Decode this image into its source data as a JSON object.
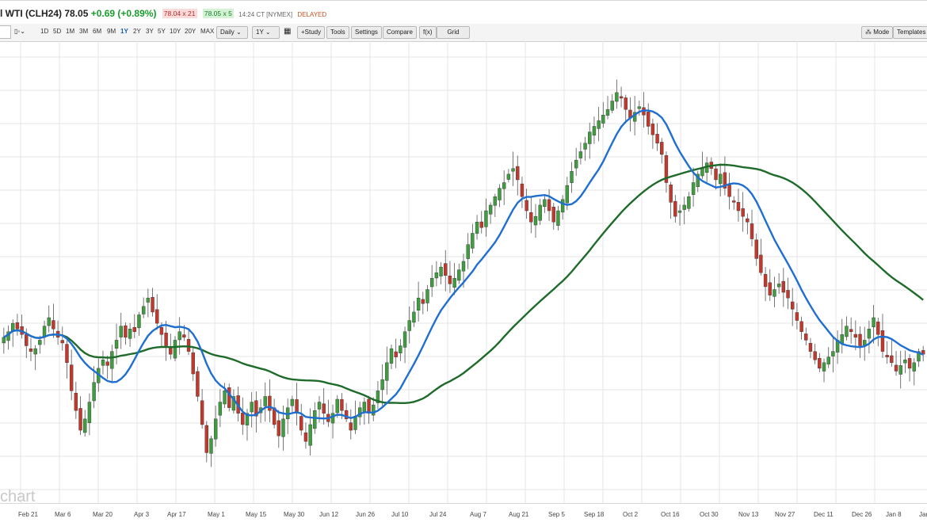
{
  "header": {
    "symbol": "l WTI (CLH24)",
    "price": "78.05",
    "change": "+0.69 (+0.89%)",
    "bid": "78.04 x 21",
    "ask": "78.05 x 5",
    "time": "14:24 CT [NYMEX]",
    "status": "DELAYED"
  },
  "toolbar": {
    "ranges": [
      "1D",
      "5D",
      "1M",
      "3M",
      "6M",
      "9M",
      "1Y",
      "2Y",
      "3Y",
      "5Y",
      "10Y",
      "20Y",
      "MAX"
    ],
    "active_range": "1Y",
    "interval": "Daily",
    "period": "1Y",
    "study": "+Study",
    "tools": "Tools",
    "settings": "Settings",
    "compare": "Compare",
    "fx": "f(x)",
    "grid": "Grid",
    "mode": "Mode",
    "templates": "Templates"
  },
  "xaxis": [
    "Feb 21",
    "Mar 6",
    "Mar 20",
    "Apr 3",
    "Apr 17",
    "May 1",
    "May 15",
    "May 30",
    "Jun 12",
    "Jun 26",
    "Jul 10",
    "Jul 24",
    "Aug 7",
    "Aug 21",
    "Sep 5",
    "Sep 18",
    "Oct 2",
    "Oct 16",
    "Oct 30",
    "Nov 13",
    "Nov 27",
    "Dec 11",
    "Dec 26",
    "Jan 8",
    "Jan"
  ],
  "watermark": "chart",
  "colors": {
    "up": "#3f9d3f",
    "down": "#c2382c",
    "ma_fast": "#1f6fd1",
    "ma_slow": "#1e6b2a",
    "grid": "#e6e6e6"
  },
  "chart_data": {
    "type": "candlestick",
    "ylim": [
      0,
      100
    ],
    "closes": [
      71,
      73,
      76,
      74,
      72,
      68,
      66,
      67,
      70,
      75,
      78,
      74,
      71,
      69,
      62,
      52,
      45,
      38,
      42,
      48,
      55,
      60,
      63,
      61,
      66,
      70,
      75,
      71,
      74,
      73,
      79,
      82,
      85,
      80,
      76,
      72,
      68,
      65,
      70,
      73,
      71,
      66,
      58,
      50,
      40,
      30,
      35,
      42,
      48,
      52,
      46,
      50,
      44,
      40,
      44,
      48,
      43,
      46,
      50,
      45,
      40,
      36,
      42,
      46,
      49,
      44,
      38,
      34,
      40,
      45,
      48,
      44,
      41,
      44,
      49,
      45,
      42,
      38,
      43,
      46,
      48,
      44,
      47,
      52,
      56,
      62,
      67,
      64,
      68,
      73,
      77,
      80,
      85,
      83,
      88,
      92,
      94,
      96,
      93,
      90,
      92,
      95,
      98,
      104,
      108,
      112,
      110,
      116,
      118,
      121,
      124,
      126,
      129,
      131,
      127,
      121,
      116,
      112,
      114,
      118,
      120,
      116,
      112,
      116,
      120,
      125,
      130,
      134,
      137,
      140,
      144,
      146,
      148,
      150,
      152,
      155,
      158,
      156,
      152,
      149,
      151,
      153,
      150,
      146,
      143,
      140,
      136,
      126,
      119,
      114,
      116,
      118,
      121,
      126,
      129,
      131,
      133,
      131,
      127,
      129,
      124,
      121,
      119,
      116,
      114,
      112,
      106,
      99,
      94,
      89,
      86,
      88,
      90,
      87,
      85,
      81,
      77,
      73,
      70,
      66,
      63,
      60,
      62,
      64,
      66,
      70,
      72,
      75,
      73,
      71,
      68,
      70,
      74,
      78,
      72,
      66,
      64,
      62,
      59,
      61,
      63,
      60,
      62,
      66,
      65
    ],
    "ma_fast": "20-day moving average (blue)",
    "ma_slow": "100-day moving average (green)"
  }
}
